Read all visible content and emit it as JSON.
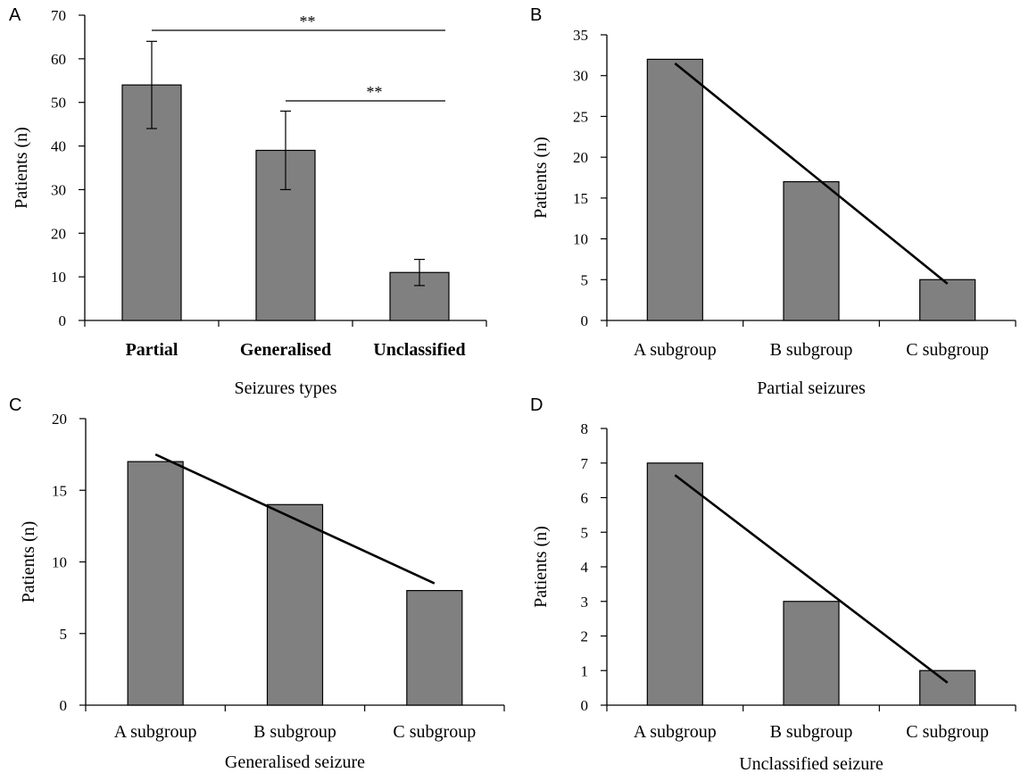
{
  "chart_data": [
    {
      "panel": "A",
      "type": "bar",
      "categories": [
        "Partial",
        "Generalised",
        "Unclassified"
      ],
      "values": [
        54,
        39,
        11
      ],
      "error_low": [
        44,
        30,
        8
      ],
      "error_high": [
        64,
        48,
        14
      ],
      "xlabel": "Seizures types",
      "ylabel": "Patients (n)",
      "ylim": [
        0,
        70
      ],
      "yticks": [
        0,
        10,
        20,
        30,
        40,
        50,
        60,
        70
      ],
      "bar_color": "#808080",
      "significance": [
        {
          "from": "Partial",
          "to": "Unclassified",
          "label": "**"
        },
        {
          "from": "Generalised",
          "to": "Unclassified",
          "label": "**"
        }
      ]
    },
    {
      "panel": "B",
      "type": "bar",
      "categories": [
        "A subgroup",
        "B subgroup",
        "C subgroup"
      ],
      "values": [
        32,
        17,
        5
      ],
      "trend": [
        31.5,
        4.5
      ],
      "xlabel": "Partial seizures",
      "ylabel": "Patients (n)",
      "ylim": [
        0,
        35
      ],
      "yticks": [
        0,
        5,
        10,
        15,
        20,
        25,
        30,
        35
      ],
      "bar_color": "#808080"
    },
    {
      "panel": "C",
      "type": "bar",
      "categories": [
        "A subgroup",
        "B subgroup",
        "C subgroup"
      ],
      "values": [
        17,
        14,
        8
      ],
      "trend": [
        17.5,
        8.5
      ],
      "xlabel": "Generalised seizure",
      "ylabel": "Patients (n)",
      "ylim": [
        0,
        20
      ],
      "yticks": [
        0,
        5,
        10,
        15,
        20
      ],
      "bar_color": "#808080"
    },
    {
      "panel": "D",
      "type": "bar",
      "categories": [
        "A subgroup",
        "B subgroup",
        "C subgroup"
      ],
      "values": [
        7,
        3,
        1
      ],
      "trend": [
        6.65,
        0.65
      ],
      "xlabel": "Unclassified seizure",
      "ylabel": "Patients (n)",
      "ylim": [
        0,
        8
      ],
      "yticks": [
        0,
        1,
        2,
        3,
        4,
        5,
        6,
        7,
        8
      ],
      "bar_color": "#808080"
    }
  ]
}
